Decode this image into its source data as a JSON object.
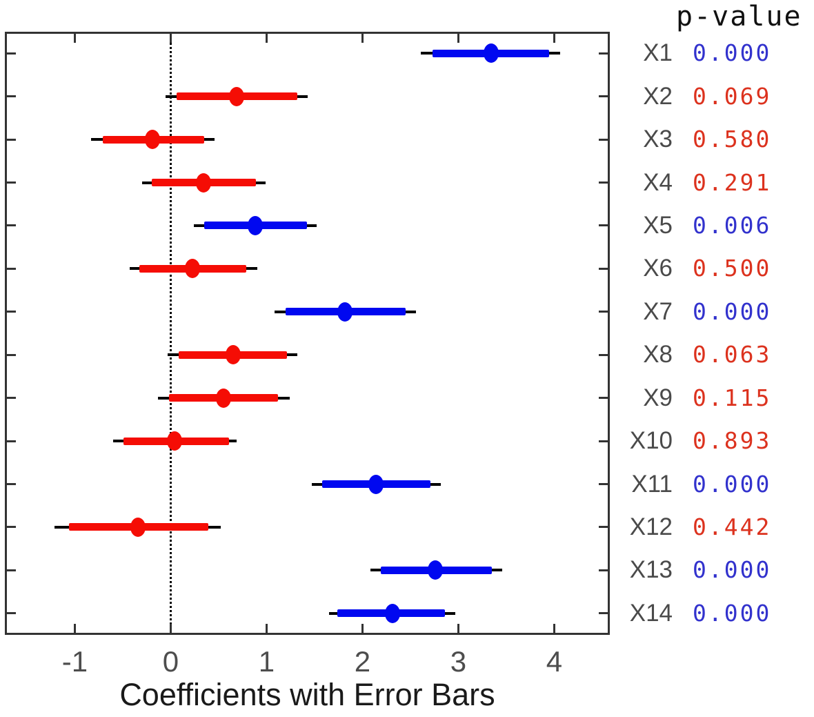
{
  "chart_data": {
    "type": "scatter",
    "subtype": "horizontal_error_bars",
    "title": "",
    "xlabel": "Coefficients with Error Bars",
    "p_value_header": "p-value",
    "x_ticks": [
      -1,
      0,
      1,
      2,
      3,
      4
    ],
    "xlim": [
      -1.73,
      4.58
    ],
    "zero_reference_line": 0,
    "grid": false,
    "legend": "none",
    "colors": {
      "significant_marker": "#0008f0",
      "nonsignificant_marker": "#f50d05",
      "significant_text": "#3232cd",
      "nonsignificant_text": "#dc321e",
      "outer_bar": "#000000",
      "axis": "#333333",
      "tick_label": "#4d4d4d",
      "row_label": "#4a4a4a"
    },
    "rows": [
      {
        "label": "X1",
        "coef": 3.34,
        "inner_ci": [
          2.73,
          3.95
        ],
        "outer_ci": [
          2.61,
          4.06
        ],
        "p": "0.000",
        "significant": true
      },
      {
        "label": "X2",
        "coef": 0.69,
        "inner_ci": [
          0.06,
          1.32
        ],
        "outer_ci": [
          -0.05,
          1.43
        ],
        "p": "0.069",
        "significant": false
      },
      {
        "label": "X3",
        "coef": -0.19,
        "inner_ci": [
          -0.71,
          0.35
        ],
        "outer_ci": [
          -0.83,
          0.46
        ],
        "p": "0.580",
        "significant": false
      },
      {
        "label": "X4",
        "coef": 0.34,
        "inner_ci": [
          -0.2,
          0.89
        ],
        "outer_ci": [
          -0.3,
          0.99
        ],
        "p": "0.291",
        "significant": false
      },
      {
        "label": "X5",
        "coef": 0.88,
        "inner_ci": [
          0.35,
          1.42
        ],
        "outer_ci": [
          0.24,
          1.52
        ],
        "p": "0.006",
        "significant": true
      },
      {
        "label": "X6",
        "coef": 0.23,
        "inner_ci": [
          -0.33,
          0.79
        ],
        "outer_ci": [
          -0.43,
          0.9
        ],
        "p": "0.500",
        "significant": false
      },
      {
        "label": "X7",
        "coef": 1.82,
        "inner_ci": [
          1.2,
          2.45
        ],
        "outer_ci": [
          1.08,
          2.56
        ],
        "p": "0.000",
        "significant": true
      },
      {
        "label": "X8",
        "coef": 0.65,
        "inner_ci": [
          0.08,
          1.21
        ],
        "outer_ci": [
          -0.03,
          1.32
        ],
        "p": "0.063",
        "significant": false
      },
      {
        "label": "X9",
        "coef": 0.55,
        "inner_ci": [
          -0.02,
          1.12
        ],
        "outer_ci": [
          -0.13,
          1.24
        ],
        "p": "0.115",
        "significant": false
      },
      {
        "label": "X10",
        "coef": 0.04,
        "inner_ci": [
          -0.49,
          0.61
        ],
        "outer_ci": [
          -0.6,
          0.69
        ],
        "p": "0.893",
        "significant": false
      },
      {
        "label": "X11",
        "coef": 2.14,
        "inner_ci": [
          1.58,
          2.71
        ],
        "outer_ci": [
          1.47,
          2.82
        ],
        "p": "0.000",
        "significant": true
      },
      {
        "label": "X12",
        "coef": -0.34,
        "inner_ci": [
          -1.06,
          0.39
        ],
        "outer_ci": [
          -1.21,
          0.52
        ],
        "p": "0.442",
        "significant": false
      },
      {
        "label": "X13",
        "coef": 2.76,
        "inner_ci": [
          2.19,
          3.35
        ],
        "outer_ci": [
          2.08,
          3.46
        ],
        "p": "0.000",
        "significant": true
      },
      {
        "label": "X14",
        "coef": 2.31,
        "inner_ci": [
          1.74,
          2.86
        ],
        "outer_ci": [
          1.65,
          2.97
        ],
        "p": "0.000",
        "significant": true
      }
    ]
  }
}
